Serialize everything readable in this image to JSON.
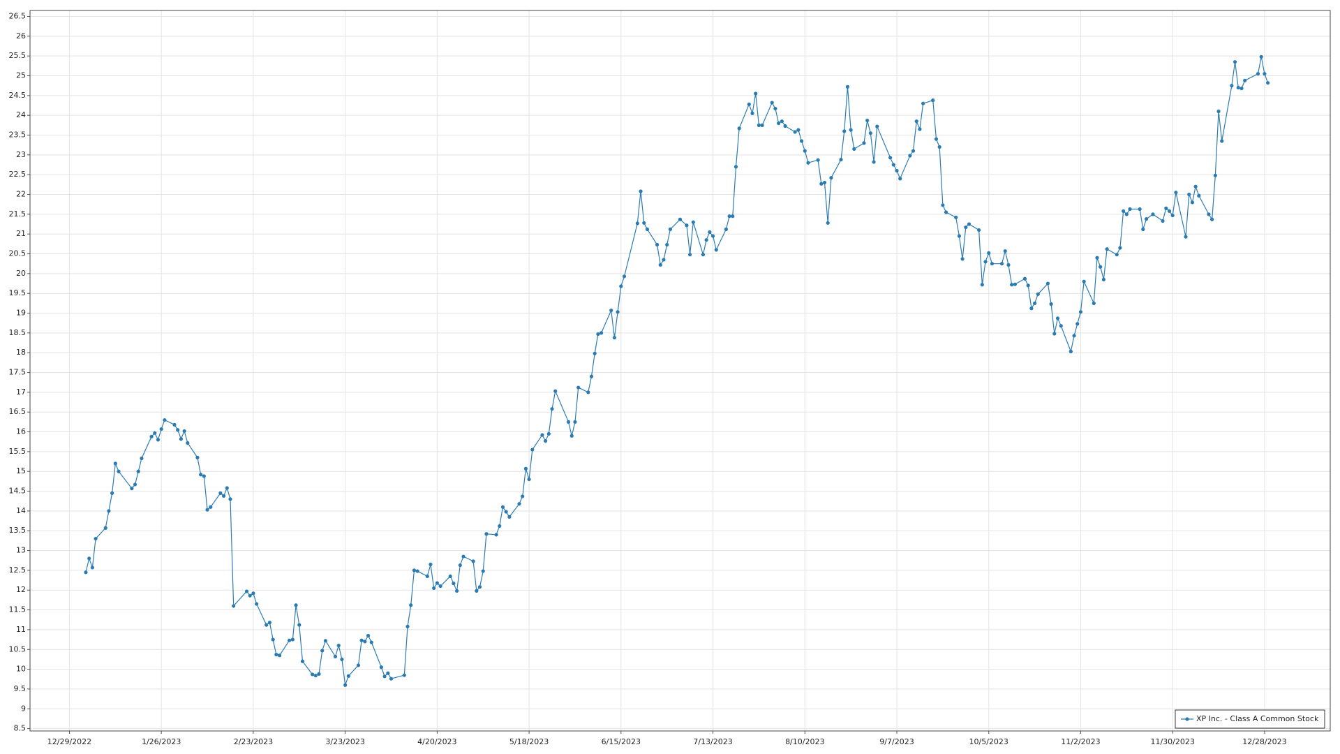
{
  "chart_data": {
    "type": "line",
    "x": [
      "2023-01-03",
      "2023-01-04",
      "2023-01-05",
      "2023-01-06",
      "2023-01-09",
      "2023-01-10",
      "2023-01-11",
      "2023-01-12",
      "2023-01-13",
      "2023-01-17",
      "2023-01-18",
      "2023-01-19",
      "2023-01-20",
      "2023-01-23",
      "2023-01-24",
      "2023-01-25",
      "2023-01-26",
      "2023-01-27",
      "2023-01-30",
      "2023-01-31",
      "2023-02-01",
      "2023-02-02",
      "2023-02-03",
      "2023-02-06",
      "2023-02-07",
      "2023-02-08",
      "2023-02-09",
      "2023-02-10",
      "2023-02-13",
      "2023-02-14",
      "2023-02-15",
      "2023-02-16",
      "2023-02-17",
      "2023-02-21",
      "2023-02-22",
      "2023-02-23",
      "2023-02-24",
      "2023-02-27",
      "2023-02-28",
      "2023-03-01",
      "2023-03-02",
      "2023-03-03",
      "2023-03-06",
      "2023-03-07",
      "2023-03-08",
      "2023-03-09",
      "2023-03-10",
      "2023-03-13",
      "2023-03-14",
      "2023-03-15",
      "2023-03-16",
      "2023-03-17",
      "2023-03-20",
      "2023-03-21",
      "2023-03-22",
      "2023-03-23",
      "2023-03-24",
      "2023-03-27",
      "2023-03-28",
      "2023-03-29",
      "2023-03-30",
      "2023-03-31",
      "2023-04-03",
      "2023-04-04",
      "2023-04-05",
      "2023-04-06",
      "2023-04-10",
      "2023-04-11",
      "2023-04-12",
      "2023-04-13",
      "2023-04-14",
      "2023-04-17",
      "2023-04-18",
      "2023-04-19",
      "2023-04-20",
      "2023-04-21",
      "2023-04-24",
      "2023-04-25",
      "2023-04-26",
      "2023-04-27",
      "2023-04-28",
      "2023-05-01",
      "2023-05-02",
      "2023-05-03",
      "2023-05-04",
      "2023-05-05",
      "2023-05-08",
      "2023-05-09",
      "2023-05-10",
      "2023-05-11",
      "2023-05-12",
      "2023-05-15",
      "2023-05-16",
      "2023-05-17",
      "2023-05-18",
      "2023-05-19",
      "2023-05-22",
      "2023-05-23",
      "2023-05-24",
      "2023-05-25",
      "2023-05-26",
      "2023-05-30",
      "2023-05-31",
      "2023-06-01",
      "2023-06-02",
      "2023-06-05",
      "2023-06-06",
      "2023-06-07",
      "2023-06-08",
      "2023-06-09",
      "2023-06-12",
      "2023-06-13",
      "2023-06-14",
      "2023-06-15",
      "2023-06-16",
      "2023-06-20",
      "2023-06-21",
      "2023-06-22",
      "2023-06-23",
      "2023-06-26",
      "2023-06-27",
      "2023-06-28",
      "2023-06-29",
      "2023-06-30",
      "2023-07-03",
      "2023-07-05",
      "2023-07-06",
      "2023-07-07",
      "2023-07-10",
      "2023-07-11",
      "2023-07-12",
      "2023-07-13",
      "2023-07-14",
      "2023-07-17",
      "2023-07-18",
      "2023-07-19",
      "2023-07-20",
      "2023-07-21",
      "2023-07-24",
      "2023-07-25",
      "2023-07-26",
      "2023-07-27",
      "2023-07-28",
      "2023-07-31",
      "2023-08-01",
      "2023-08-02",
      "2023-08-03",
      "2023-08-04",
      "2023-08-07",
      "2023-08-08",
      "2023-08-09",
      "2023-08-10",
      "2023-08-11",
      "2023-08-14",
      "2023-08-15",
      "2023-08-16",
      "2023-08-17",
      "2023-08-18",
      "2023-08-21",
      "2023-08-22",
      "2023-08-23",
      "2023-08-24",
      "2023-08-25",
      "2023-08-28",
      "2023-08-29",
      "2023-08-30",
      "2023-08-31",
      "2023-09-01",
      "2023-09-05",
      "2023-09-06",
      "2023-09-07",
      "2023-09-08",
      "2023-09-11",
      "2023-09-12",
      "2023-09-13",
      "2023-09-14",
      "2023-09-15",
      "2023-09-18",
      "2023-09-19",
      "2023-09-20",
      "2023-09-21",
      "2023-09-22",
      "2023-09-25",
      "2023-09-26",
      "2023-09-27",
      "2023-09-28",
      "2023-09-29",
      "2023-10-02",
      "2023-10-03",
      "2023-10-04",
      "2023-10-05",
      "2023-10-06",
      "2023-10-09",
      "2023-10-10",
      "2023-10-11",
      "2023-10-12",
      "2023-10-13",
      "2023-10-16",
      "2023-10-17",
      "2023-10-18",
      "2023-10-19",
      "2023-10-20",
      "2023-10-23",
      "2023-10-24",
      "2023-10-25",
      "2023-10-26",
      "2023-10-27",
      "2023-10-30",
      "2023-10-31",
      "2023-11-01",
      "2023-11-02",
      "2023-11-03",
      "2023-11-06",
      "2023-11-07",
      "2023-11-08",
      "2023-11-09",
      "2023-11-10",
      "2023-11-13",
      "2023-11-14",
      "2023-11-15",
      "2023-11-16",
      "2023-11-17",
      "2023-11-20",
      "2023-11-21",
      "2023-11-22",
      "2023-11-24",
      "2023-11-27",
      "2023-11-28",
      "2023-11-29",
      "2023-11-30",
      "2023-12-01",
      "2023-12-04",
      "2023-12-05",
      "2023-12-06",
      "2023-12-07",
      "2023-12-08",
      "2023-12-11",
      "2023-12-12",
      "2023-12-13",
      "2023-12-14",
      "2023-12-15",
      "2023-12-18",
      "2023-12-19",
      "2023-12-20",
      "2023-12-21",
      "2023-12-22",
      "2023-12-26",
      "2023-12-27",
      "2023-12-28",
      "2023-12-29"
    ],
    "series": [
      {
        "name": "XP Inc. - Class A Common Stock",
        "color": "#2b7bb3",
        "values": [
          12.45,
          12.8,
          12.57,
          13.3,
          13.57,
          14.0,
          14.45,
          15.2,
          15.0,
          14.57,
          14.67,
          15.0,
          15.33,
          15.88,
          15.97,
          15.8,
          16.07,
          16.3,
          16.18,
          16.05,
          15.82,
          16.02,
          15.72,
          15.35,
          14.92,
          14.88,
          14.03,
          14.1,
          14.45,
          14.38,
          14.58,
          14.3,
          11.6,
          11.97,
          11.86,
          11.92,
          11.65,
          11.12,
          11.18,
          10.75,
          10.37,
          10.35,
          10.73,
          10.75,
          11.62,
          11.12,
          10.2,
          9.87,
          9.84,
          9.88,
          10.47,
          10.72,
          10.32,
          10.6,
          10.25,
          9.6,
          9.83,
          10.1,
          10.73,
          10.7,
          10.85,
          10.68,
          10.05,
          9.82,
          9.9,
          9.76,
          9.85,
          11.08,
          11.62,
          12.5,
          12.48,
          12.35,
          12.65,
          12.05,
          12.18,
          12.1,
          12.35,
          12.17,
          11.98,
          12.63,
          12.85,
          12.73,
          11.98,
          12.08,
          12.48,
          13.42,
          13.4,
          13.62,
          14.1,
          13.98,
          13.85,
          14.18,
          14.37,
          15.07,
          14.8,
          15.55,
          15.92,
          15.77,
          15.95,
          16.58,
          17.03,
          16.25,
          15.9,
          16.25,
          17.12,
          17.0,
          17.4,
          17.98,
          18.47,
          18.5,
          19.07,
          18.38,
          19.03,
          19.68,
          19.93,
          21.27,
          22.08,
          21.28,
          21.12,
          20.73,
          20.22,
          20.35,
          20.73,
          21.12,
          21.37,
          21.22,
          20.48,
          21.3,
          20.48,
          20.85,
          21.05,
          20.95,
          20.6,
          21.12,
          21.45,
          21.45,
          22.7,
          23.67,
          24.28,
          24.05,
          24.55,
          23.75,
          23.75,
          24.32,
          24.17,
          23.8,
          23.85,
          23.73,
          23.58,
          23.63,
          23.35,
          23.1,
          22.8,
          22.87,
          22.27,
          22.3,
          21.28,
          22.42,
          22.88,
          23.6,
          24.72,
          23.63,
          23.15,
          23.3,
          23.87,
          23.55,
          22.82,
          23.72,
          22.93,
          22.75,
          22.6,
          22.4,
          22.98,
          23.1,
          23.85,
          23.65,
          24.3,
          24.38,
          23.4,
          23.2,
          21.73,
          21.55,
          21.42,
          20.95,
          20.37,
          21.17,
          21.25,
          21.1,
          19.72,
          20.3,
          20.52,
          20.25,
          20.25,
          20.57,
          20.22,
          19.72,
          19.73,
          19.87,
          19.7,
          19.12,
          19.25,
          19.48,
          19.75,
          19.23,
          18.48,
          18.87,
          18.68,
          18.03,
          18.43,
          18.73,
          19.03,
          19.8,
          19.25,
          20.4,
          20.17,
          19.85,
          20.62,
          20.48,
          20.65,
          21.58,
          21.5,
          21.63,
          21.63,
          21.12,
          21.38,
          21.5,
          21.33,
          21.65,
          21.58,
          21.47,
          22.05,
          20.93,
          22.0,
          21.8,
          22.2,
          21.97,
          21.5,
          21.37,
          22.48,
          24.1,
          23.35,
          24.75,
          25.35,
          24.7,
          24.68,
          24.88,
          25.05,
          25.48,
          25.05,
          24.82
        ]
      }
    ],
    "xlim": [
      "2022-12-17",
      "2024-01-17"
    ],
    "xticks": [
      {
        "value": "2022-12-29",
        "label": "12/29/2022"
      },
      {
        "value": "2023-01-26",
        "label": "1/26/2023"
      },
      {
        "value": "2023-02-23",
        "label": "2/23/2023"
      },
      {
        "value": "2023-03-23",
        "label": "3/23/2023"
      },
      {
        "value": "2023-04-20",
        "label": "4/20/2023"
      },
      {
        "value": "2023-05-18",
        "label": "5/18/2023"
      },
      {
        "value": "2023-06-15",
        "label": "6/15/2023"
      },
      {
        "value": "2023-07-13",
        "label": "7/13/2023"
      },
      {
        "value": "2023-08-10",
        "label": "8/10/2023"
      },
      {
        "value": "2023-09-07",
        "label": "9/7/2023"
      },
      {
        "value": "2023-10-05",
        "label": "10/5/2023"
      },
      {
        "value": "2023-11-02",
        "label": "11/2/2023"
      },
      {
        "value": "2023-11-30",
        "label": "11/30/2023"
      },
      {
        "value": "2023-12-28",
        "label": "12/28/2023"
      }
    ],
    "ylim": [
      8.44,
      26.65
    ],
    "yticks": [
      8.5,
      9,
      9.5,
      10,
      10.5,
      11,
      11.5,
      12,
      12.5,
      13,
      13.5,
      14,
      14.5,
      15,
      15.5,
      16,
      16.5,
      17,
      17.5,
      18,
      18.5,
      19,
      19.5,
      20,
      20.5,
      21,
      21.5,
      22,
      22.5,
      23,
      23.5,
      24,
      24.5,
      25,
      25.5,
      26,
      26.5
    ],
    "grid": true,
    "legend": "lower right"
  }
}
